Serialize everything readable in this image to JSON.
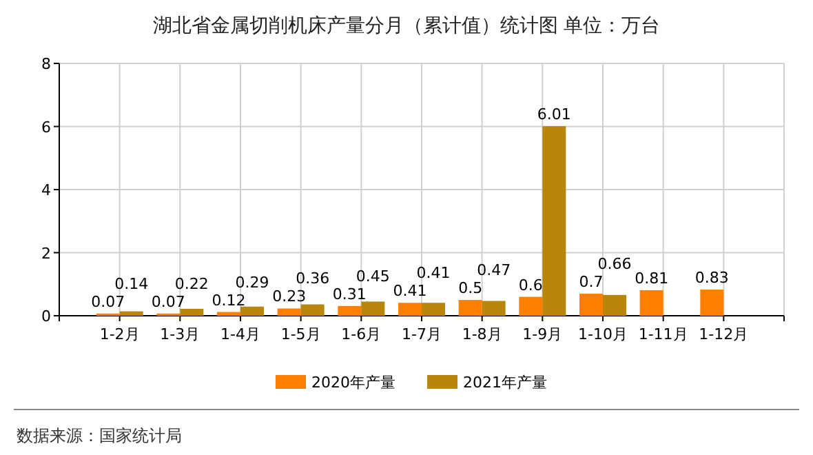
{
  "chart_data": {
    "type": "bar",
    "title": "湖北省金属切削机床产量分月（累计值）统计图 单位：万台",
    "categories": [
      "1-2月",
      "1-3月",
      "1-4月",
      "1-5月",
      "1-6月",
      "1-7月",
      "1-8月",
      "1-9月",
      "1-10月",
      "1-11月",
      "1-12月"
    ],
    "series": [
      {
        "name": "2020年产量",
        "color": "#ff8000",
        "values": [
          0.07,
          0.07,
          0.12,
          0.23,
          0.31,
          0.41,
          0.5,
          0.6,
          0.7,
          0.81,
          0.83
        ]
      },
      {
        "name": "2021年产量",
        "color": "#b8860b",
        "values": [
          0.14,
          0.22,
          0.29,
          0.36,
          0.45,
          0.41,
          0.47,
          6.01,
          0.66,
          null,
          null
        ]
      }
    ],
    "ylim": [
      0,
      8
    ],
    "yticks": [
      0,
      2,
      4,
      6,
      8
    ],
    "grid": true,
    "legend": "bottom",
    "data_labels": true,
    "annotations": [
      "数据来源：国家统计局"
    ]
  }
}
